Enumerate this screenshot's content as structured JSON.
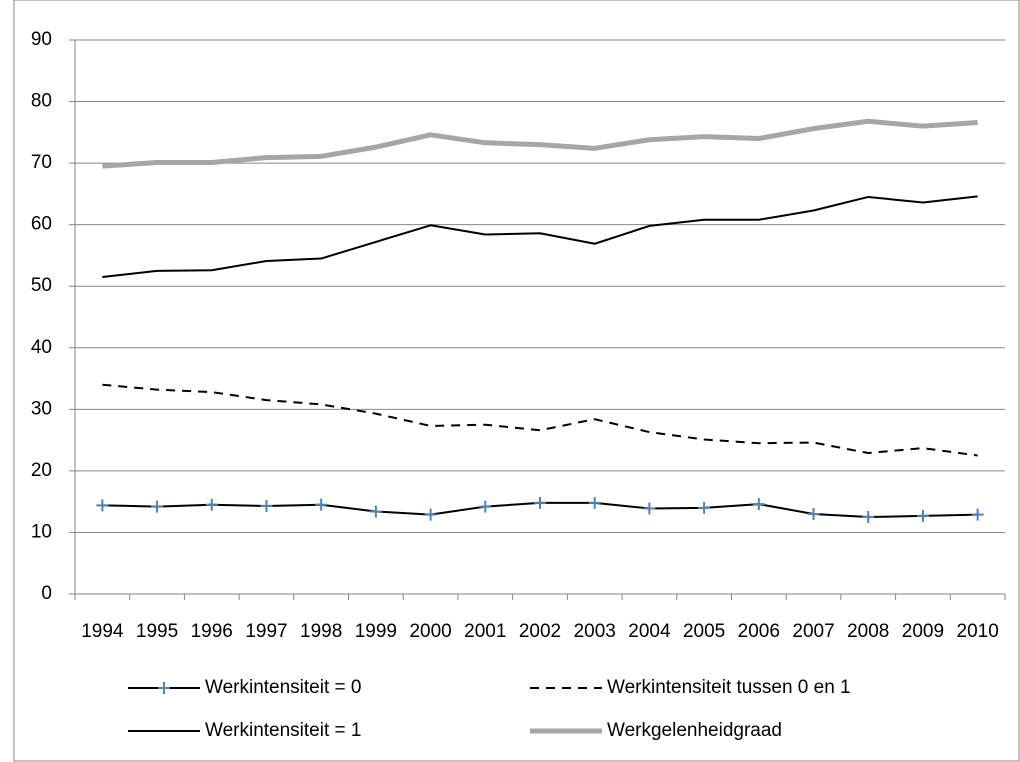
{
  "chart_data": {
    "type": "line",
    "categories": [
      "1994",
      "1995",
      "1996",
      "1997",
      "1998",
      "1999",
      "2000",
      "2001",
      "2002",
      "2003",
      "2004",
      "2005",
      "2006",
      "2007",
      "2008",
      "2009",
      "2010"
    ],
    "series": [
      {
        "name": "Werkintensiteit = 0",
        "color": "#000000",
        "width": 2,
        "dash": false,
        "marker": "+",
        "marker_color": "#4f81bd",
        "values": [
          14.4,
          14.2,
          14.5,
          14.3,
          14.5,
          13.4,
          12.9,
          14.2,
          14.8,
          14.8,
          13.9,
          14.0,
          14.6,
          13.0,
          12.5,
          12.7,
          12.9
        ]
      },
      {
        "name": "Werkintensiteit tussen 0 en 1",
        "color": "#000000",
        "width": 2,
        "dash": true,
        "values": [
          34.0,
          33.2,
          32.8,
          31.5,
          30.8,
          29.3,
          27.3,
          27.5,
          26.6,
          28.4,
          26.3,
          25.1,
          24.5,
          24.6,
          22.9,
          23.7,
          22.5
        ]
      },
      {
        "name": "Werkintensiteit = 1",
        "color": "#000000",
        "width": 2,
        "dash": false,
        "values": [
          51.5,
          52.5,
          52.6,
          54.1,
          54.5,
          57.2,
          59.9,
          58.4,
          58.6,
          56.9,
          59.8,
          60.8,
          60.8,
          62.3,
          64.5,
          63.6,
          64.6
        ]
      },
      {
        "name": "Werkgelenheidgraad",
        "color": "#a6a6a6",
        "width": 5,
        "dash": false,
        "values": [
          69.5,
          70.1,
          70.1,
          70.9,
          71.1,
          72.6,
          74.6,
          73.3,
          73.0,
          72.4,
          73.8,
          74.3,
          74.0,
          75.6,
          76.8,
          76.0,
          76.6
        ]
      }
    ],
    "ylim": [
      0,
      90
    ],
    "yticks": [
      0,
      10,
      20,
      30,
      40,
      50,
      60,
      70,
      80,
      90
    ],
    "grid": true,
    "legend": "bottom"
  }
}
